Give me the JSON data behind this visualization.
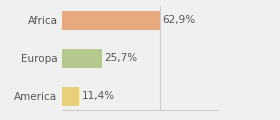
{
  "categories": [
    "Africa",
    "Europa",
    "America"
  ],
  "values": [
    62.9,
    25.7,
    11.4
  ],
  "labels": [
    "62,9%",
    "25,7%",
    "11,4%"
  ],
  "bar_colors": [
    "#e8a97e",
    "#b5c98e",
    "#e8d07a"
  ],
  "background_color": "#f0f0f0",
  "xlim": [
    0,
    100
  ],
  "bar_height": 0.5,
  "label_fontsize": 7.5,
  "tick_fontsize": 7.5,
  "label_color": "#555555",
  "tick_color": "#555555",
  "grid_color": "#cccccc"
}
